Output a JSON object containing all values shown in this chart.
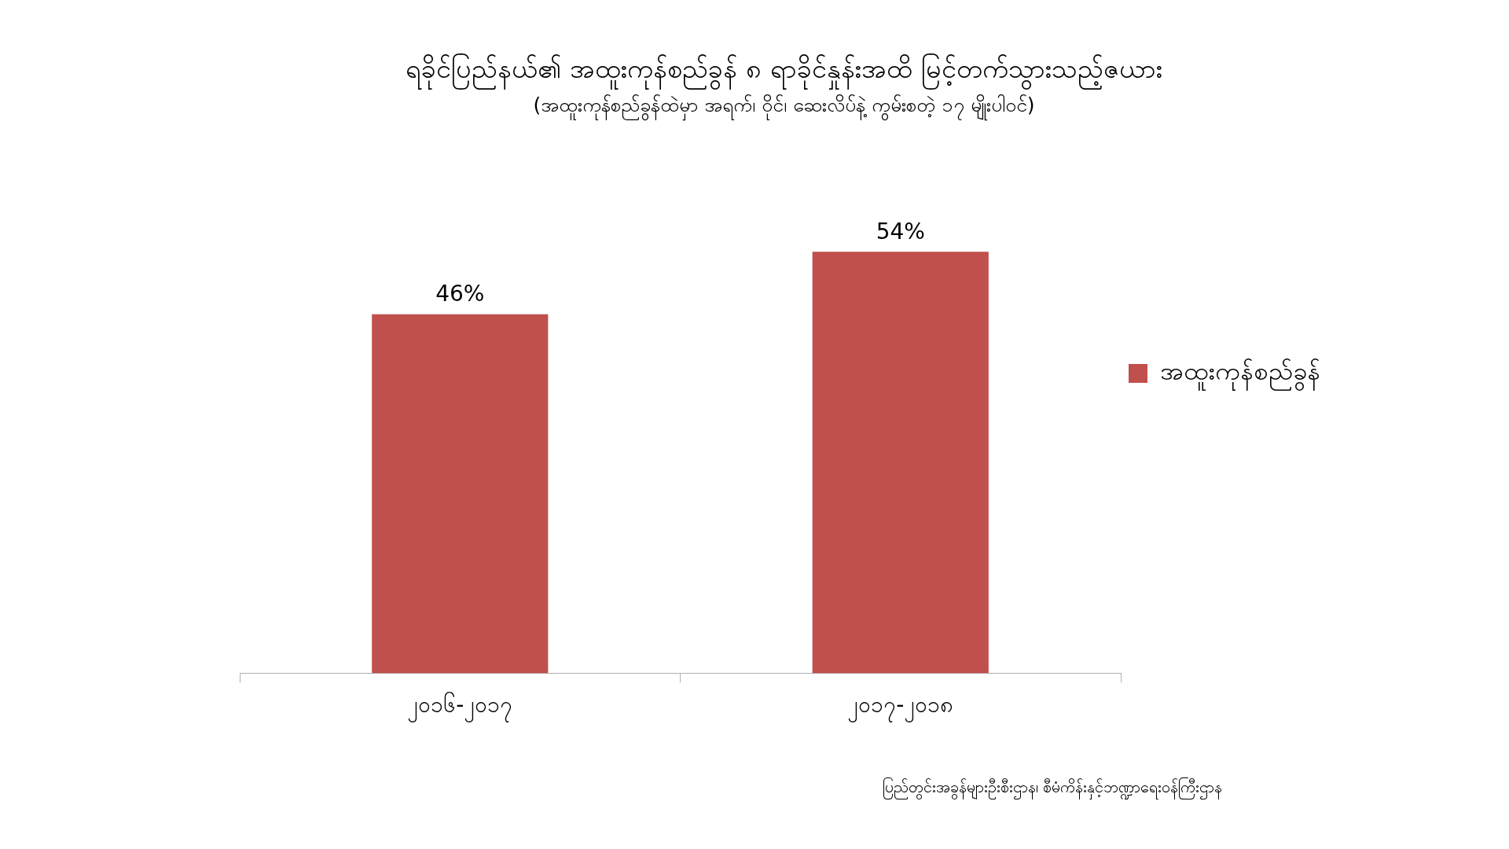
{
  "chart_data": {
    "type": "bar",
    "title": "ရခိုင်ပြည်နယ်၏ အထူးကုန်စည်ခွန် ၈ ရာခိုင်နှုန်းအထိ မြင့်တက်သွားသည့်ဇယား",
    "subtitle": "(အထူးကုန်စည်ခွန်ထဲမှာ အရက်၊ ဝိုင်၊ ဆေးလိပ်နဲ့ ကွမ်းစတဲ့ ၁၇ မျိုးပါဝင်)",
    "categories": [
      "၂၀၁၆-၂၀၁၇",
      "၂၀၁၇-၂၀၁၈"
    ],
    "series": [
      {
        "name": "အထူးကုန်စည်ခွန်",
        "color": "#c0504d",
        "values": [
          46,
          54
        ],
        "value_labels": [
          "46%",
          "54%"
        ]
      }
    ],
    "legend": "right",
    "annotations": [
      "ပြည်တွင်းအခွန်များဦးစီးဌာန၊ စီမံကိန်းနှင့်ဘဏ္ဍာရေးဝန်ကြီးဌာန"
    ]
  }
}
